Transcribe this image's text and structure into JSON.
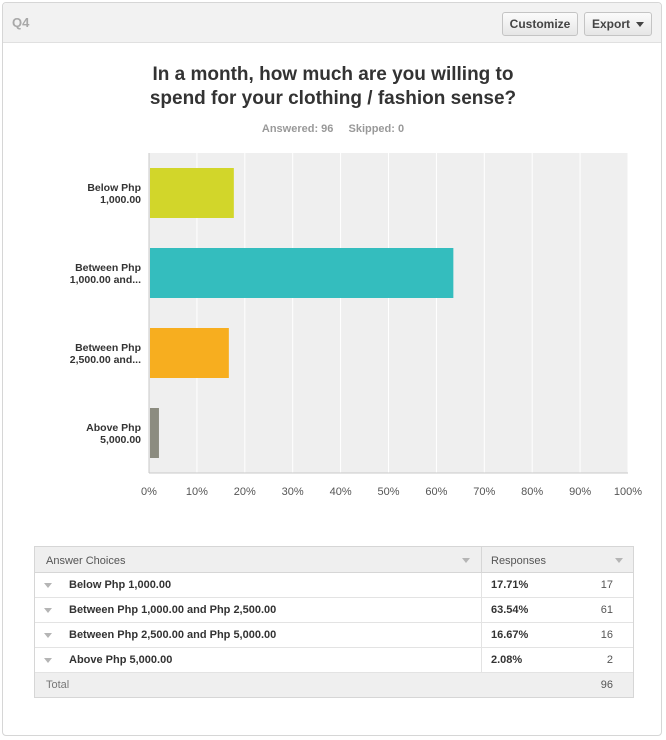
{
  "header": {
    "question_label": "Q4",
    "customize_label": "Customize",
    "export_label": "Export"
  },
  "title_line1": "In a month, how much are you willing to",
  "title_line2": "spend for your clothing / fashion sense?",
  "stats": {
    "answered": "Answered: 96",
    "skipped": "Skipped: 0"
  },
  "chart_data": {
    "type": "bar",
    "orientation": "horizontal",
    "categories": [
      [
        "Below Php",
        "1,000.00"
      ],
      [
        "Between Php",
        "1,000.00 and..."
      ],
      [
        "Between Php",
        "2,500.00 and..."
      ],
      [
        "Above Php",
        "5,000.00"
      ]
    ],
    "values": [
      17.71,
      63.54,
      16.67,
      2.08
    ],
    "colors": [
      "#d2d62a",
      "#34bdbe",
      "#f7ae1f",
      "#8c8c80"
    ],
    "xlim": [
      0,
      100
    ],
    "x_ticks": [
      "0%",
      "10%",
      "20%",
      "30%",
      "40%",
      "50%",
      "60%",
      "70%",
      "80%",
      "90%",
      "100%"
    ],
    "grid": true,
    "plot_background": "#efefef"
  },
  "table": {
    "header_choices": "Answer Choices",
    "header_responses": "Responses",
    "rows": [
      {
        "choice": "Below Php 1,000.00",
        "percent": "17.71%",
        "count": "17"
      },
      {
        "choice": "Between Php 1,000.00 and Php 2,500.00",
        "percent": "63.54%",
        "count": "61"
      },
      {
        "choice": "Between Php 2,500.00 and Php 5,000.00",
        "percent": "16.67%",
        "count": "16"
      },
      {
        "choice": "Above Php 5,000.00",
        "percent": "2.08%",
        "count": "2"
      }
    ],
    "total_label": "Total",
    "total_count": "96"
  }
}
